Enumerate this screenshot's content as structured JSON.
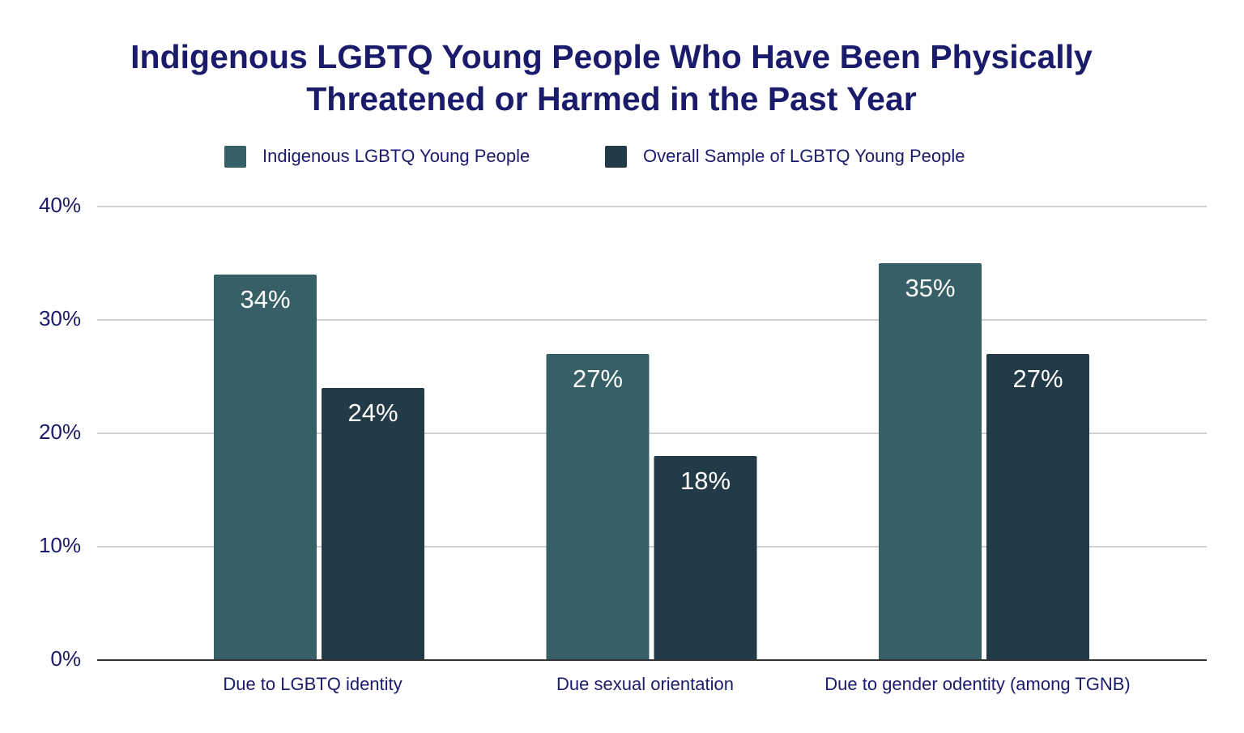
{
  "chart_data": {
    "type": "bar",
    "title": "Indigenous LGBTQ Young People Who Have Been Physically Threatened or Harmed in the Past Year",
    "categories": [
      "Due to LGBTQ identity",
      "Due sexual orientation",
      "Due to gender odentity (among TGNB)"
    ],
    "series": [
      {
        "name": "Indigenous LGBTQ Young People",
        "color": "#375f66",
        "values": [
          34,
          27,
          35
        ],
        "value_labels": [
          "34%",
          "27%",
          "35%"
        ]
      },
      {
        "name": "Overall Sample of LGBTQ Young People",
        "color": "#233a47",
        "values": [
          24,
          18,
          27
        ],
        "value_labels": [
          "24%",
          "18%",
          "27%"
        ]
      }
    ],
    "ylim": [
      0,
      40
    ],
    "yticks": [
      {
        "value": 0,
        "label": "0%"
      },
      {
        "value": 10,
        "label": "10%"
      },
      {
        "value": 20,
        "label": "20%"
      },
      {
        "value": 30,
        "label": "30%"
      },
      {
        "value": 40,
        "label": "40%"
      }
    ],
    "grid": true,
    "legend": "top"
  }
}
